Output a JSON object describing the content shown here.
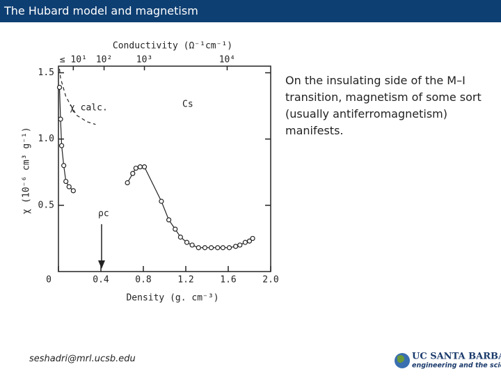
{
  "header": {
    "title": "The Hubard model and magnetism"
  },
  "chart_data": {
    "type": "scatter",
    "title": "Conductivity (Ω⁻¹cm⁻¹)",
    "top_ticks": [
      {
        "value": 0.14,
        "label": "≤ 10¹"
      },
      {
        "value": 0.43,
        "label": "10²"
      },
      {
        "value": 0.81,
        "label": "10³"
      },
      {
        "value": 1.59,
        "label": "10⁴"
      }
    ],
    "x_label": "Density (g. cm⁻³)",
    "y_label": "χ (10⁻⁶ cm³ g⁻¹)",
    "xlim": [
      0,
      2
    ],
    "ylim": [
      0,
      1.55
    ],
    "xticks": [
      0,
      0.4,
      0.8,
      1.2,
      1.6,
      {
        "value": 2,
        "label": "2.0"
      }
    ],
    "yticks": [
      0.5,
      {
        "value": 1,
        "label": "1.0"
      },
      1.5
    ],
    "annotations": [
      "χ calc.",
      "Cs",
      "ρc"
    ],
    "color": "#222222",
    "series": [
      {
        "x": [
          0.01,
          0.02,
          0.03,
          0.05,
          0.07,
          0.1,
          0.14
        ],
        "values": [
          1.39,
          1.15,
          0.95,
          0.8,
          0.68,
          0.64,
          0.61
        ],
        "markers": true
      },
      {
        "x": [
          0.65,
          0.7,
          0.73,
          0.77,
          0.81,
          0.97,
          1.04,
          1.1,
          1.15,
          1.21,
          1.26,
          1.32,
          1.38,
          1.44,
          1.5,
          1.55,
          1.61,
          1.67,
          1.71,
          1.76,
          1.8,
          1.83
        ],
        "values": [
          0.67,
          0.74,
          0.78,
          0.79,
          0.79,
          0.53,
          0.39,
          0.32,
          0.26,
          0.22,
          0.2,
          0.18,
          0.18,
          0.18,
          0.18,
          0.18,
          0.18,
          0.19,
          0.2,
          0.22,
          0.23,
          0.25
        ],
        "markers": true
      },
      {
        "x": [
          0.01,
          0.02,
          0.07,
          0.17,
          0.27,
          0.35
        ],
        "values": [
          1.53,
          1.46,
          1.32,
          1.18,
          1.13,
          1.11
        ],
        "markers": false,
        "dashed": true
      }
    ]
  },
  "body": {
    "text": "On the insulating side of the M–I transition, magnetism of some sort (usually antiferromagnetism) manifests."
  },
  "footer": {
    "email": "seshadri@mrl.ucsb.edu",
    "logo": {
      "name": "UC SANTA BARBARA",
      "tagline": "engineering and the sciences"
    }
  }
}
